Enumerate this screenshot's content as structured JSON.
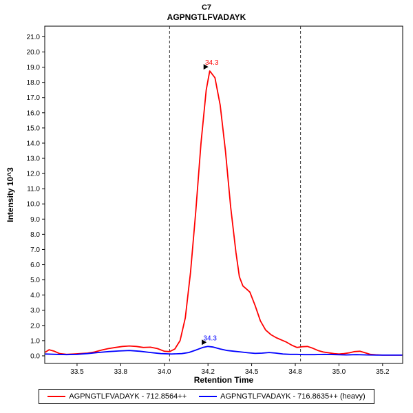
{
  "chart_data": {
    "type": "line",
    "title": "C7",
    "subtitle": "AGPNGTLFVADAYK",
    "xlabel": "Retention Time",
    "ylabel": "Intensity 10^3",
    "xlim": [
      33.315,
      35.365
    ],
    "ylim": [
      -0.5,
      21.7
    ],
    "grid": false,
    "legend_position": "bottom",
    "frame_color": "#000000",
    "background": "#ffffff",
    "x_ticks": {
      "values": [
        33.5,
        33.75,
        34.0,
        34.25,
        34.5,
        34.75,
        35.0,
        35.25
      ],
      "labels": [
        "33.5",
        "33.8",
        "34.0",
        "34.2",
        "34.5",
        "34.8",
        "35.0",
        "35.2"
      ]
    },
    "y_ticks": {
      "values": [
        0,
        1,
        2,
        3,
        4,
        5,
        6,
        7,
        8,
        9,
        10,
        11,
        12,
        13,
        14,
        15,
        16,
        17,
        18,
        19,
        20,
        21
      ],
      "labels": [
        "0.0",
        "1.0",
        "2.0",
        "3.0",
        "4.0",
        "5.0",
        "6.0",
        "7.0",
        "8.0",
        "9.0",
        "10.0",
        "11.0",
        "12.0",
        "13.0",
        "14.0",
        "15.0",
        "16.0",
        "17.0",
        "18.0",
        "19.0",
        "20.0",
        "21.0"
      ]
    },
    "integration_boundaries": [
      34.03,
      34.78
    ],
    "boundary_style": {
      "color": "#333333",
      "dash": "4,3"
    },
    "series": [
      {
        "name": "AGPNGTLFVADAYK - 712.8564++",
        "color": "#ff0000",
        "annotation": {
          "label": "34.3",
          "x": 34.26,
          "y": 18.75
        },
        "points": [
          [
            33.32,
            0.25
          ],
          [
            33.34,
            0.4
          ],
          [
            33.37,
            0.3
          ],
          [
            33.4,
            0.15
          ],
          [
            33.44,
            0.1
          ],
          [
            33.48,
            0.12
          ],
          [
            33.52,
            0.15
          ],
          [
            33.56,
            0.18
          ],
          [
            33.6,
            0.25
          ],
          [
            33.64,
            0.38
          ],
          [
            33.68,
            0.48
          ],
          [
            33.72,
            0.55
          ],
          [
            33.76,
            0.62
          ],
          [
            33.8,
            0.65
          ],
          [
            33.84,
            0.62
          ],
          [
            33.88,
            0.55
          ],
          [
            33.92,
            0.57
          ],
          [
            33.96,
            0.48
          ],
          [
            34.0,
            0.3
          ],
          [
            34.03,
            0.28
          ],
          [
            34.06,
            0.45
          ],
          [
            34.09,
            1.0
          ],
          [
            34.12,
            2.5
          ],
          [
            34.15,
            5.5
          ],
          [
            34.18,
            9.5
          ],
          [
            34.21,
            14.0
          ],
          [
            34.24,
            17.5
          ],
          [
            34.26,
            18.75
          ],
          [
            34.29,
            18.3
          ],
          [
            34.32,
            16.5
          ],
          [
            34.35,
            13.5
          ],
          [
            34.38,
            9.8
          ],
          [
            34.41,
            6.8
          ],
          [
            34.43,
            5.2
          ],
          [
            34.45,
            4.6
          ],
          [
            34.47,
            4.4
          ],
          [
            34.49,
            4.2
          ],
          [
            34.52,
            3.3
          ],
          [
            34.55,
            2.3
          ],
          [
            34.58,
            1.7
          ],
          [
            34.61,
            1.4
          ],
          [
            34.64,
            1.2
          ],
          [
            34.67,
            1.05
          ],
          [
            34.7,
            0.9
          ],
          [
            34.73,
            0.7
          ],
          [
            34.76,
            0.55
          ],
          [
            34.79,
            0.6
          ],
          [
            34.82,
            0.62
          ],
          [
            34.85,
            0.5
          ],
          [
            34.88,
            0.35
          ],
          [
            34.91,
            0.25
          ],
          [
            34.94,
            0.2
          ],
          [
            34.97,
            0.15
          ],
          [
            35.0,
            0.12
          ],
          [
            35.03,
            0.15
          ],
          [
            35.06,
            0.2
          ],
          [
            35.09,
            0.28
          ],
          [
            35.12,
            0.3
          ],
          [
            35.15,
            0.2
          ],
          [
            35.18,
            0.1
          ],
          [
            35.21,
            0.07
          ],
          [
            35.25,
            0.05
          ],
          [
            35.29,
            0.05
          ],
          [
            35.33,
            0.05
          ],
          [
            35.36,
            0.05
          ]
        ]
      },
      {
        "name": "AGPNGTLFVADAYK - 716.8635++ (heavy)",
        "color": "#0000ff",
        "annotation": {
          "label": "34.3",
          "x": 34.25,
          "y": 0.62
        },
        "points": [
          [
            33.32,
            0.12
          ],
          [
            33.38,
            0.1
          ],
          [
            33.44,
            0.08
          ],
          [
            33.5,
            0.1
          ],
          [
            33.56,
            0.15
          ],
          [
            33.62,
            0.22
          ],
          [
            33.68,
            0.28
          ],
          [
            33.74,
            0.32
          ],
          [
            33.8,
            0.35
          ],
          [
            33.86,
            0.3
          ],
          [
            33.92,
            0.22
          ],
          [
            33.98,
            0.15
          ],
          [
            34.04,
            0.12
          ],
          [
            34.1,
            0.15
          ],
          [
            34.14,
            0.22
          ],
          [
            34.18,
            0.38
          ],
          [
            34.22,
            0.55
          ],
          [
            34.25,
            0.62
          ],
          [
            34.28,
            0.58
          ],
          [
            34.32,
            0.45
          ],
          [
            34.36,
            0.35
          ],
          [
            34.4,
            0.3
          ],
          [
            34.44,
            0.25
          ],
          [
            34.48,
            0.2
          ],
          [
            34.52,
            0.16
          ],
          [
            34.56,
            0.18
          ],
          [
            34.6,
            0.22
          ],
          [
            34.64,
            0.18
          ],
          [
            34.68,
            0.12
          ],
          [
            34.72,
            0.1
          ],
          [
            34.76,
            0.1
          ],
          [
            34.8,
            0.08
          ],
          [
            34.86,
            0.08
          ],
          [
            34.92,
            0.1
          ],
          [
            34.98,
            0.08
          ],
          [
            35.04,
            0.06
          ],
          [
            35.1,
            0.08
          ],
          [
            35.16,
            0.06
          ],
          [
            35.22,
            0.05
          ],
          [
            35.28,
            0.05
          ],
          [
            35.34,
            0.05
          ],
          [
            35.36,
            0.05
          ]
        ]
      }
    ]
  }
}
